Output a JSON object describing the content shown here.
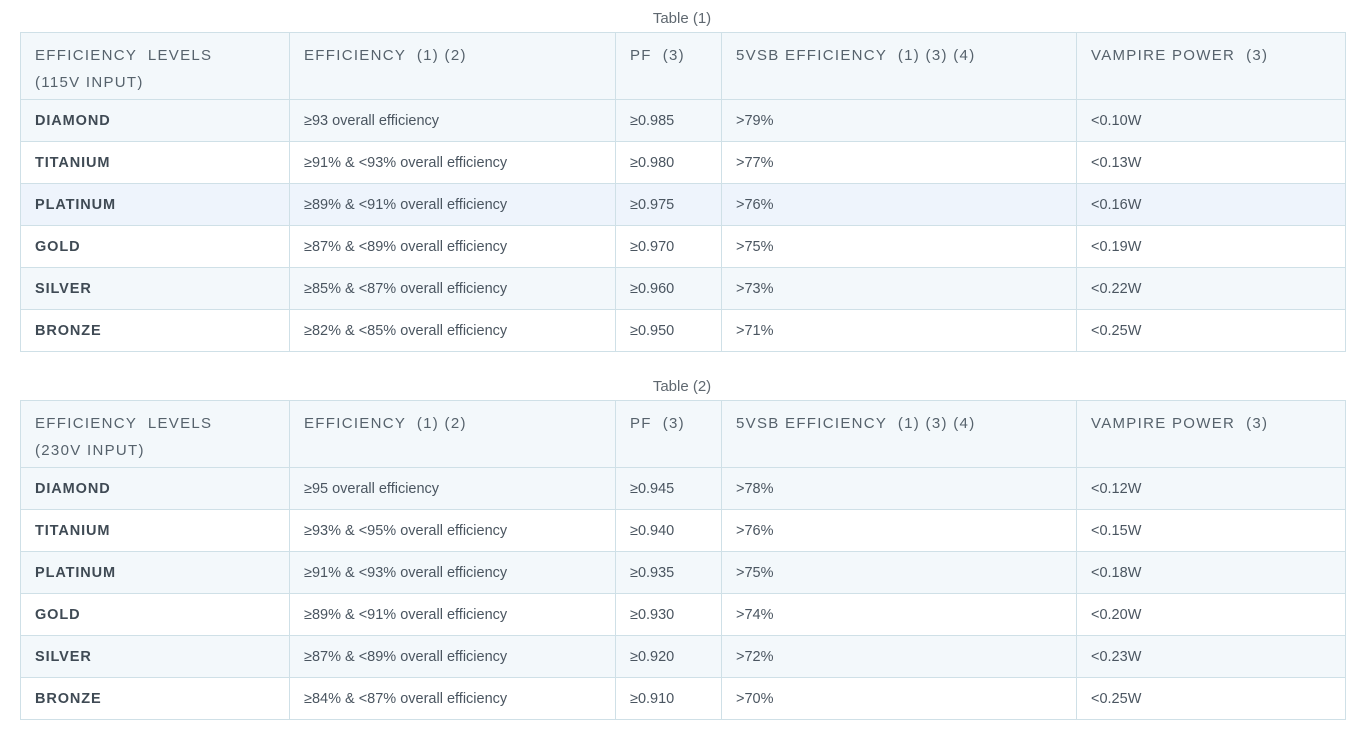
{
  "tables": [
    {
      "caption": "Table (1)",
      "headers": [
        "EFFICIENCY  LEVELS (115V INPUT)",
        "EFFICIENCY  (1) (2)",
        "PF  (3)",
        "5VSB EFFICIENCY  (1) (3) (4)",
        "VAMPIRE POWER  (3)"
      ],
      "header_line1": "EFFICIENCY  LEVELS",
      "header_line2": "(115V INPUT)",
      "rows": [
        [
          "DIAMOND",
          "≥93 overall efficiency",
          "≥0.985",
          ">79%",
          "<0.10W"
        ],
        [
          "TITANIUM",
          "≥91% & <93% overall efficiency",
          "≥0.980",
          ">77%",
          "<0.13W"
        ],
        [
          "PLATINUM",
          "≥89% & <91% overall efficiency",
          "≥0.975",
          ">76%",
          "<0.16W"
        ],
        [
          "GOLD",
          "≥87% & <89% overall efficiency",
          "≥0.970",
          ">75%",
          "<0.19W"
        ],
        [
          "SILVER",
          "≥85% & <87% overall efficiency",
          "≥0.960",
          ">73%",
          "<0.22W"
        ],
        [
          "BRONZE",
          "≥82% & <85% overall efficiency",
          "≥0.950",
          ">71%",
          "<0.25W"
        ]
      ]
    },
    {
      "caption": "Table (2)",
      "headers": [
        "EFFICIENCY  LEVELS (230V INPUT)",
        "EFFICIENCY  (1) (2)",
        "PF  (3)",
        "5VSB EFFICIENCY  (1) (3) (4)",
        "VAMPIRE POWER  (3)"
      ],
      "header_line1": "EFFICIENCY  LEVELS",
      "header_line2": "(230V INPUT)",
      "rows": [
        [
          "DIAMOND",
          "≥95 overall efficiency",
          "≥0.945",
          ">78%",
          "<0.12W"
        ],
        [
          "TITANIUM",
          "≥93% & <95% overall efficiency",
          "≥0.940",
          ">76%",
          "<0.15W"
        ],
        [
          "PLATINUM",
          "≥91% & <93% overall efficiency",
          "≥0.935",
          ">75%",
          "<0.18W"
        ],
        [
          "GOLD",
          "≥89% & <91% overall efficiency",
          "≥0.930",
          ">74%",
          "<0.20W"
        ],
        [
          "SILVER",
          "≥87% & <89% overall efficiency",
          "≥0.920",
          ">72%",
          "<0.23W"
        ],
        [
          "BRONZE",
          "≥84% & <87% overall efficiency",
          "≥0.910",
          ">70%",
          "<0.25W"
        ]
      ]
    }
  ],
  "colors": {
    "header_bg": "#f3f8fb",
    "border": "#cfe0e7",
    "highlight_row": "#eef4fc",
    "text": "#4a5560"
  }
}
